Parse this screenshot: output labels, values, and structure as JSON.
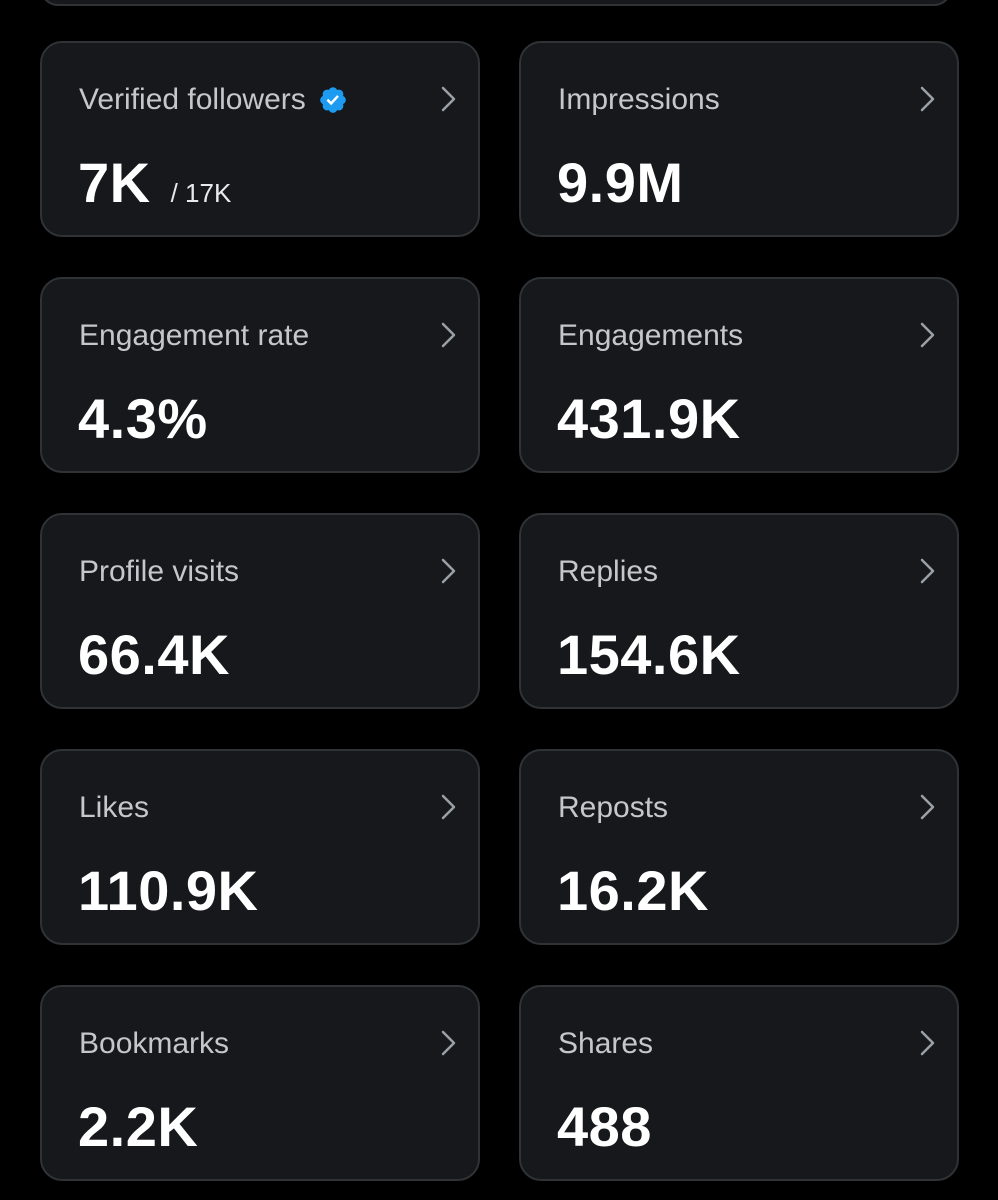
{
  "colors": {
    "background": "#000000",
    "card_background": "#16181c",
    "card_border": "#2f3336",
    "label_text": "#c4c7cb",
    "value_text": "#ffffff",
    "verified_badge": "#1d9bf0"
  },
  "cards": [
    {
      "label": "Verified followers",
      "value": "7K",
      "sub_value": "/ 17K",
      "icon": "verified-badge-icon"
    },
    {
      "label": "Impressions",
      "value": "9.9M"
    },
    {
      "label": "Engagement rate",
      "value": "4.3%"
    },
    {
      "label": "Engagements",
      "value": "431.9K"
    },
    {
      "label": "Profile visits",
      "value": "66.4K"
    },
    {
      "label": "Replies",
      "value": "154.6K"
    },
    {
      "label": "Likes",
      "value": "110.9K"
    },
    {
      "label": "Reposts",
      "value": "16.2K"
    },
    {
      "label": "Bookmarks",
      "value": "2.2K"
    },
    {
      "label": "Shares",
      "value": "488"
    }
  ]
}
